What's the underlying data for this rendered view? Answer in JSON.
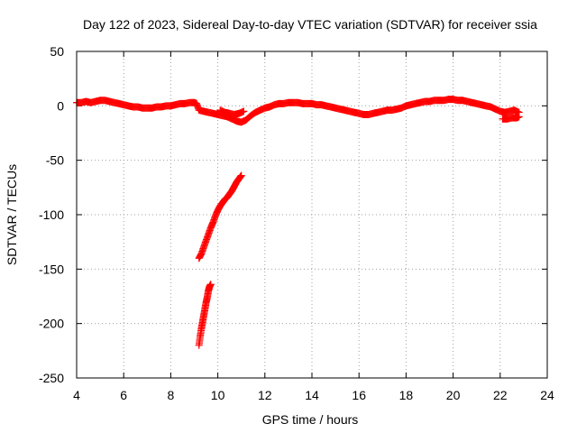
{
  "chart_data": {
    "type": "scatter",
    "title": "Day 122 of 2023, Sidereal Day-to-day VTEC variation (SDTVAR) for receiver ssia",
    "xlabel": "GPS time / hours",
    "ylabel": "SDTVAR / TECUs",
    "xlim": [
      4,
      24
    ],
    "ylim": [
      -250,
      50
    ],
    "xticks": [
      "4",
      "6",
      "8",
      "10",
      "12",
      "14",
      "16",
      "18",
      "20",
      "22",
      "24"
    ],
    "yticks": [
      "50",
      "0",
      "-50",
      "-100",
      "-150",
      "-200",
      "-250"
    ],
    "grid": true,
    "marker": "+",
    "colors": {
      "series": "#ff0000"
    },
    "series": [
      {
        "points": [
          [
            4.0,
            3
          ],
          [
            4.2,
            3
          ],
          [
            4.4,
            4
          ],
          [
            4.6,
            3
          ],
          [
            4.8,
            4
          ],
          [
            5.0,
            5
          ],
          [
            5.2,
            5
          ],
          [
            5.4,
            4
          ],
          [
            5.6,
            3
          ],
          [
            5.8,
            2
          ],
          [
            6.0,
            1
          ],
          [
            6.2,
            0
          ],
          [
            6.4,
            -1
          ],
          [
            6.6,
            -1
          ],
          [
            6.8,
            -2
          ],
          [
            7.0,
            -2
          ],
          [
            7.2,
            -2
          ],
          [
            7.4,
            -1
          ],
          [
            7.6,
            -1
          ],
          [
            7.8,
            0
          ],
          [
            8.0,
            0
          ],
          [
            8.2,
            1
          ],
          [
            8.4,
            2
          ],
          [
            8.6,
            2
          ],
          [
            8.8,
            3
          ],
          [
            9.0,
            3
          ],
          [
            9.1,
            2
          ],
          [
            9.2,
            -4
          ],
          [
            9.4,
            -5
          ],
          [
            9.6,
            -6
          ],
          [
            9.8,
            -7
          ],
          [
            10.0,
            -8
          ],
          [
            10.2,
            -9
          ],
          [
            10.4,
            -10
          ],
          [
            10.6,
            -12
          ],
          [
            10.8,
            -14
          ],
          [
            11.0,
            -15
          ],
          [
            11.2,
            -13
          ],
          [
            11.4,
            -9
          ],
          [
            11.6,
            -6
          ],
          [
            11.8,
            -4
          ],
          [
            12.0,
            -2
          ],
          [
            12.2,
            -1
          ],
          [
            12.4,
            1
          ],
          [
            12.6,
            2
          ],
          [
            12.8,
            2
          ],
          [
            13.0,
            3
          ],
          [
            13.2,
            3
          ],
          [
            13.4,
            3
          ],
          [
            13.6,
            2
          ],
          [
            13.8,
            2
          ],
          [
            14.0,
            2
          ],
          [
            14.2,
            1
          ],
          [
            14.4,
            1
          ],
          [
            14.6,
            0
          ],
          [
            14.8,
            -1
          ],
          [
            15.0,
            -2
          ],
          [
            15.2,
            -3
          ],
          [
            15.4,
            -4
          ],
          [
            15.6,
            -5
          ],
          [
            15.8,
            -6
          ],
          [
            16.0,
            -7
          ],
          [
            16.2,
            -8
          ],
          [
            16.4,
            -8
          ],
          [
            16.6,
            -7
          ],
          [
            16.8,
            -6
          ],
          [
            17.0,
            -5
          ],
          [
            17.2,
            -4
          ],
          [
            17.4,
            -4
          ],
          [
            17.6,
            -3
          ],
          [
            17.8,
            -2
          ],
          [
            18.0,
            0
          ],
          [
            18.2,
            1
          ],
          [
            18.4,
            2
          ],
          [
            18.6,
            3
          ],
          [
            18.8,
            4
          ],
          [
            19.0,
            4
          ],
          [
            19.2,
            5
          ],
          [
            19.4,
            5
          ],
          [
            19.6,
            5
          ],
          [
            19.8,
            6
          ],
          [
            20.0,
            6
          ],
          [
            20.2,
            5
          ],
          [
            20.4,
            5
          ],
          [
            20.6,
            4
          ],
          [
            20.8,
            3
          ],
          [
            21.0,
            2
          ],
          [
            21.2,
            1
          ],
          [
            21.4,
            0
          ],
          [
            21.6,
            -1
          ],
          [
            21.8,
            -3
          ],
          [
            22.0,
            -5
          ],
          [
            22.2,
            -6
          ],
          [
            22.4,
            -5
          ],
          [
            22.6,
            -4
          ],
          [
            22.8,
            -6
          ],
          [
            10.1,
            -4
          ],
          [
            10.3,
            -6
          ],
          [
            10.5,
            -7
          ],
          [
            10.7,
            -8
          ],
          [
            10.9,
            -7
          ],
          [
            11.1,
            -5
          ],
          [
            22.1,
            -12
          ],
          [
            22.3,
            -12
          ],
          [
            22.5,
            -11
          ],
          [
            22.7,
            -11
          ],
          [
            22.8,
            -10
          ],
          [
            9.2,
            -140
          ],
          [
            9.3,
            -136
          ],
          [
            9.4,
            -130
          ],
          [
            9.5,
            -124
          ],
          [
            9.6,
            -118
          ],
          [
            9.7,
            -112
          ],
          [
            9.8,
            -107
          ],
          [
            9.9,
            -101
          ],
          [
            10.0,
            -96
          ],
          [
            10.1,
            -92
          ],
          [
            10.2,
            -89
          ],
          [
            10.3,
            -86
          ],
          [
            10.4,
            -84
          ],
          [
            10.5,
            -81
          ],
          [
            10.6,
            -78
          ],
          [
            10.7,
            -74
          ],
          [
            10.8,
            -70
          ],
          [
            10.9,
            -67
          ],
          [
            11.0,
            -64
          ],
          [
            9.2,
            -220
          ],
          [
            9.25,
            -212
          ],
          [
            9.3,
            -205
          ],
          [
            9.35,
            -199
          ],
          [
            9.4,
            -193
          ],
          [
            9.45,
            -187
          ],
          [
            9.5,
            -181
          ],
          [
            9.55,
            -176
          ],
          [
            9.6,
            -170
          ],
          [
            9.65,
            -166
          ],
          [
            9.7,
            -164
          ]
        ]
      }
    ]
  }
}
